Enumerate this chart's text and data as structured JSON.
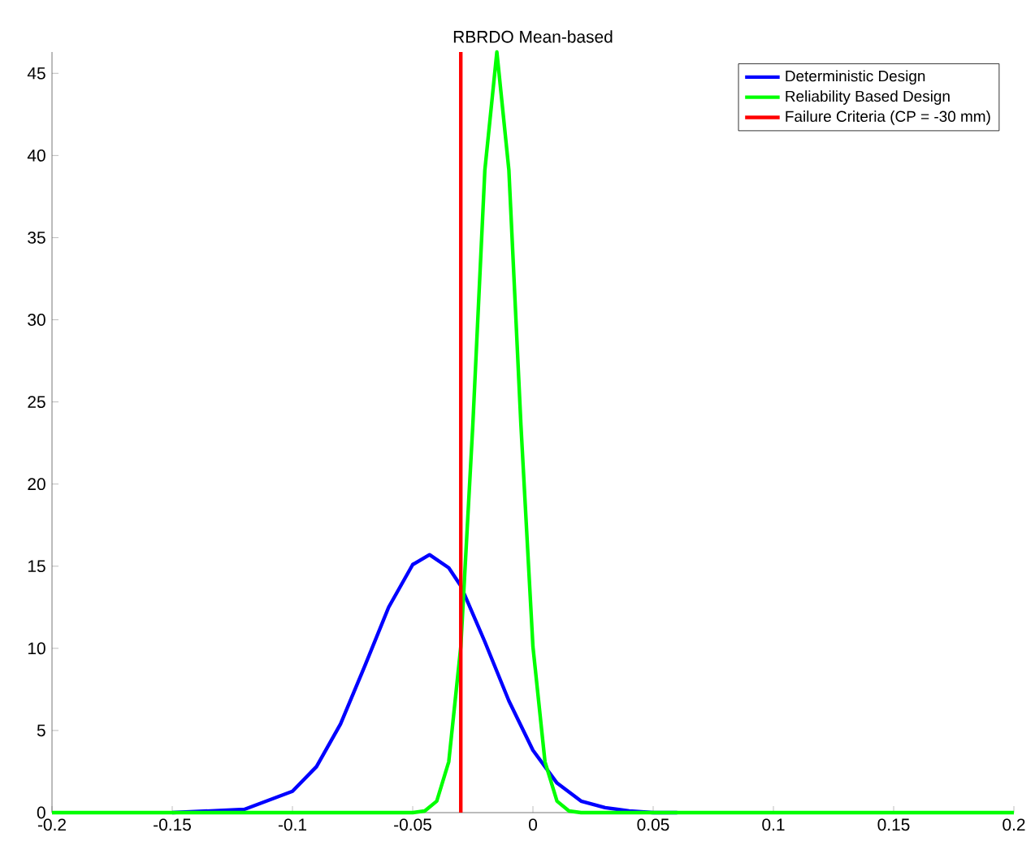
{
  "chart_data": {
    "type": "line",
    "title": "RBRDO Mean-based",
    "xlim": [
      -0.2,
      0.2
    ],
    "ylim": [
      0,
      46.3
    ],
    "xticks": [
      -0.2,
      -0.15,
      -0.1,
      -0.05,
      0,
      0.05,
      0.1,
      0.15,
      0.2
    ],
    "yticks": [
      0,
      5,
      10,
      15,
      20,
      25,
      30,
      35,
      40,
      45
    ],
    "grid": false,
    "legend": "top right",
    "marker": "none",
    "line_style": "solid",
    "series": [
      {
        "name": "Deterministic Design",
        "color": "#0000ff",
        "x": [
          -0.15,
          -0.12,
          -0.1,
          -0.09,
          -0.08,
          -0.07,
          -0.06,
          -0.05,
          -0.043,
          -0.035,
          -0.03,
          -0.02,
          -0.01,
          0,
          0.01,
          0.02,
          0.03,
          0.04,
          0.05,
          0.06
        ],
        "values": [
          0,
          0.2,
          1.3,
          2.8,
          5.4,
          8.9,
          12.5,
          15.1,
          15.7,
          14.9,
          13.8,
          10.4,
          6.8,
          3.8,
          1.8,
          0.7,
          0.3,
          0.1,
          0,
          0
        ]
      },
      {
        "name": "Reliability Based Design",
        "color": "#00ff00",
        "x": [
          -0.2,
          -0.05,
          -0.045,
          -0.04,
          -0.035,
          -0.03,
          -0.025,
          -0.02,
          -0.015,
          -0.01,
          -0.005,
          0,
          0.005,
          0.01,
          0.015,
          0.02,
          0.2
        ],
        "values": [
          0,
          0,
          0.1,
          0.7,
          3.1,
          10.1,
          23.6,
          39.1,
          46.3,
          39.1,
          23.6,
          10.1,
          3.1,
          0.7,
          0.1,
          0,
          0
        ]
      },
      {
        "name": "Failure Criteria (CP = -30 mm)",
        "color": "#ff0000",
        "x": [
          -0.03,
          -0.03
        ],
        "values": [
          0,
          46.3
        ]
      }
    ]
  }
}
